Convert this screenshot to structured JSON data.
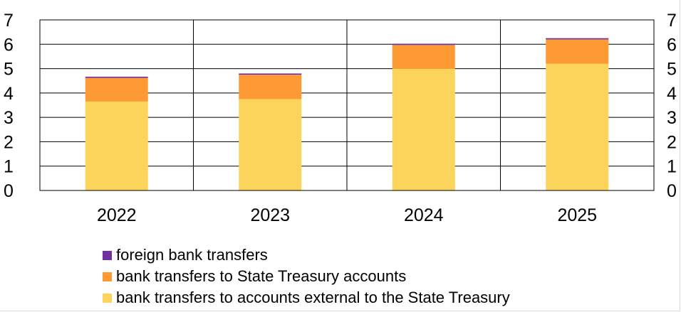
{
  "chart_data": {
    "type": "bar",
    "stacked": true,
    "categories": [
      "2022",
      "2023",
      "2024",
      "2025"
    ],
    "series": [
      {
        "name": "bank transfers to accounts external to the State Treasury",
        "values": [
          3.65,
          3.75,
          5.0,
          5.2
        ],
        "color": "#FCD45C"
      },
      {
        "name": "bank transfers to State Treasury accounts",
        "values": [
          0.97,
          1.0,
          0.97,
          1.0
        ],
        "color": "#FD9A33"
      },
      {
        "name": "foreign bank transfers",
        "values": [
          0.05,
          0.05,
          0.05,
          0.05
        ],
        "color": "#7030A0"
      }
    ],
    "ylim": [
      0,
      7
    ],
    "yticks": [
      "0",
      "1",
      "2",
      "3",
      "4",
      "5",
      "6",
      "7"
    ],
    "secondary_axis_ticks": [
      "0",
      "1",
      "2",
      "3",
      "4",
      "5",
      "6",
      "7"
    ],
    "grid": true,
    "legend_position": "bottom",
    "legend_order": [
      "foreign bank transfers",
      "bank transfers to State Treasury accounts",
      "bank transfers to accounts external to the State Treasury"
    ],
    "title": "",
    "xlabel": "",
    "ylabel": ""
  }
}
